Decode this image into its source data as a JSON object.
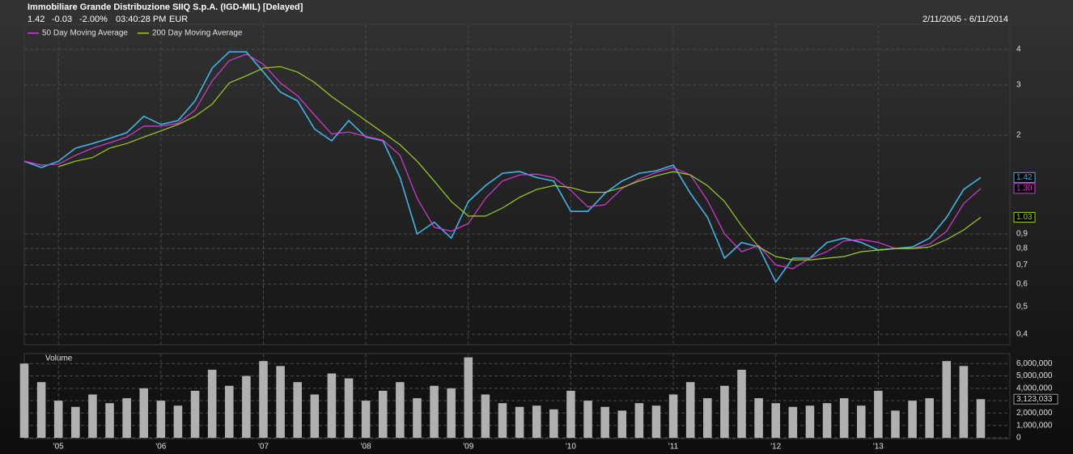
{
  "chart_data": [
    {
      "type": "line",
      "title": "Immobiliare Grande Distribuzione SIIQ S.p.A. (IGD-MIL) [Delayed]",
      "quote": {
        "change": "-0.03",
        "change_percent": "-2.00%",
        "time": "03:40:28 PM",
        "currency": "EUR"
      },
      "date_range": "2/11/2005 - 6/11/2014",
      "log_scale": true,
      "grid": true,
      "legend": "top-left",
      "ylim": [
        0.37,
        4.9
      ],
      "yticks": [
        {
          "value": 0.4,
          "label": "0,4"
        },
        {
          "value": 0.5,
          "label": "0,5"
        },
        {
          "value": 0.6,
          "label": "0,6"
        },
        {
          "value": 0.7,
          "label": "0,7"
        },
        {
          "value": 0.8,
          "label": "0,8"
        },
        {
          "value": 0.9,
          "label": "0,9"
        },
        2,
        3,
        4
      ],
      "series": [
        {
          "color": "#3fb6e8",
          "values": [
            1.62,
            1.54,
            1.62,
            1.8,
            1.87,
            1.95,
            2.04,
            2.33,
            2.18,
            2.25,
            2.64,
            3.44,
            3.92,
            3.92,
            3.33,
            2.83,
            2.64,
            2.1,
            1.91,
            2.25,
            1.97,
            1.91,
            1.42,
            0.9,
            0.99,
            0.87,
            1.17,
            1.33,
            1.47,
            1.49,
            1.42,
            1.38,
            1.08,
            1.08,
            1.25,
            1.38,
            1.47,
            1.5,
            1.57,
            1.25,
            1.03,
            0.74,
            0.84,
            0.81,
            0.61,
            0.74,
            0.74,
            0.84,
            0.87,
            0.84,
            0.79,
            0.8,
            0.81,
            0.87,
            1.03,
            1.29,
            1.42
          ]
        },
        {
          "name": "50 Day Moving Average",
          "color": "#d63bd6",
          "values": [
            1.62,
            1.57,
            1.58,
            1.7,
            1.8,
            1.88,
            1.97,
            2.15,
            2.15,
            2.2,
            2.45,
            3.1,
            3.65,
            3.85,
            3.55,
            3.05,
            2.75,
            2.35,
            2.02,
            2.05,
            1.98,
            1.92,
            1.7,
            1.2,
            0.95,
            0.92,
            0.98,
            1.2,
            1.38,
            1.45,
            1.46,
            1.42,
            1.28,
            1.12,
            1.14,
            1.3,
            1.4,
            1.48,
            1.54,
            1.45,
            1.18,
            0.9,
            0.78,
            0.82,
            0.7,
            0.68,
            0.74,
            0.78,
            0.85,
            0.86,
            0.84,
            0.8,
            0.8,
            0.83,
            0.92,
            1.15,
            1.3
          ],
          "value_labels": [
            null,
            null,
            null,
            null,
            null,
            null,
            null,
            null,
            null,
            null,
            null,
            null,
            null,
            null,
            null,
            null,
            null,
            null,
            null,
            null,
            null,
            null,
            null,
            null,
            null,
            null,
            null,
            null,
            null,
            null,
            null,
            null,
            null,
            null,
            null,
            null,
            null,
            null,
            null,
            null,
            null,
            null,
            null,
            null,
            null,
            null,
            null,
            null,
            null,
            null,
            null,
            null,
            null,
            null,
            null,
            null,
            "1.30"
          ]
        },
        {
          "name": "200 Day Moving Average",
          "color": "#9ccf1e",
          "values": [
            null,
            null,
            1.55,
            1.62,
            1.67,
            1.8,
            1.87,
            1.97,
            2.07,
            2.18,
            2.33,
            2.57,
            3.05,
            3.23,
            3.44,
            3.48,
            3.33,
            3.06,
            2.73,
            2.48,
            2.25,
            2.04,
            1.85,
            1.62,
            1.38,
            1.17,
            1.04,
            1.04,
            1.11,
            1.21,
            1.29,
            1.33,
            1.31,
            1.26,
            1.26,
            1.31,
            1.38,
            1.44,
            1.49,
            1.45,
            1.33,
            1.17,
            0.96,
            0.81,
            0.75,
            0.73,
            0.73,
            0.74,
            0.75,
            0.78,
            0.79,
            0.8,
            0.8,
            0.81,
            0.86,
            0.93,
            1.03
          ]
        }
      ]
    },
    {
      "type": "bar",
      "title": "Volume",
      "color": "#b0b0b0",
      "grid": true,
      "categories": [
        null,
        null,
        "'05",
        null,
        null,
        null,
        null,
        null,
        "'06",
        null,
        null,
        null,
        null,
        null,
        "'07",
        null,
        null,
        null,
        null,
        null,
        "'08",
        null,
        null,
        null,
        null,
        null,
        "'09",
        null,
        null,
        null,
        null,
        null,
        "'10",
        null,
        null,
        null,
        null,
        null,
        "'11",
        null,
        null,
        null,
        null,
        null,
        "'12",
        null,
        null,
        null,
        null,
        null,
        "'13",
        null,
        null,
        null,
        null,
        null,
        null
      ],
      "values": [
        6000000,
        4500000,
        3000000,
        2500000,
        3500000,
        2800000,
        3200000,
        4000000,
        3000000,
        2600000,
        3800000,
        5500000,
        4200000,
        5000000,
        6200000,
        5800000,
        4500000,
        3500000,
        5200000,
        4800000,
        3000000,
        3800000,
        4500000,
        3200000,
        4200000,
        4000000,
        6500000,
        3500000,
        2800000,
        2500000,
        2600000,
        2300000,
        3800000,
        3000000,
        2500000,
        2200000,
        2800000,
        2600000,
        3500000,
        4500000,
        3200000,
        4200000,
        5500000,
        3200000,
        2800000,
        2500000,
        2600000,
        2800000,
        3200000,
        2600000,
        3800000,
        2200000,
        3000000,
        3200000,
        6200000,
        5800000,
        3123033
      ],
      "value_labels": [
        null,
        null,
        null,
        null,
        null,
        null,
        null,
        null,
        null,
        null,
        null,
        null,
        null,
        null,
        null,
        null,
        null,
        null,
        null,
        null,
        null,
        null,
        null,
        null,
        null,
        null,
        null,
        null,
        null,
        null,
        null,
        null,
        null,
        null,
        null,
        null,
        null,
        null,
        null,
        null,
        null,
        null,
        null,
        null,
        null,
        null,
        null,
        null,
        null,
        null,
        null,
        null,
        null,
        null,
        null,
        null,
        "3,123,033"
      ],
      "ylim": [
        0,
        6800000
      ],
      "yticks": [
        0,
        {
          "value": 1000000,
          "label": "1,000,000"
        },
        {
          "value": 2000000,
          "label": "2,000,000"
        },
        {
          "value": 3000000,
          "label": "3,000,000"
        },
        {
          "value": 4000000,
          "label": "4,000,000"
        },
        {
          "value": 5000000,
          "label": "5,000,000"
        },
        {
          "value": 6000000,
          "label": "6,000,000"
        }
      ]
    }
  ]
}
